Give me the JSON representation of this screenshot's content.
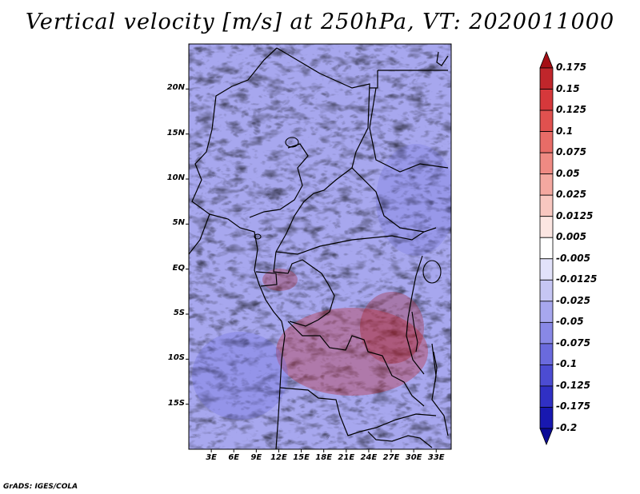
{
  "title": "Vertical velocity [m/s] at 250hPa, VT: 2020011000",
  "credit": "GrADS: IGES/COLA",
  "map": {
    "lat_range": [
      -20,
      25
    ],
    "lon_range": [
      0,
      35
    ],
    "y_ticks": [
      {
        "lat": 20,
        "label": "20N"
      },
      {
        "lat": 15,
        "label": "15N"
      },
      {
        "lat": 10,
        "label": "10N"
      },
      {
        "lat": 5,
        "label": "5N"
      },
      {
        "lat": 0,
        "label": "EQ"
      },
      {
        "lat": -5,
        "label": "5S"
      },
      {
        "lat": -10,
        "label": "10S"
      },
      {
        "lat": -15,
        "label": "15S"
      }
    ],
    "x_ticks": [
      {
        "lon": 3,
        "label": "3E"
      },
      {
        "lon": 6,
        "label": "6E"
      },
      {
        "lon": 9,
        "label": "9E"
      },
      {
        "lon": 12,
        "label": "12E"
      },
      {
        "lon": 15,
        "label": "15E"
      },
      {
        "lon": 18,
        "label": "18E"
      },
      {
        "lon": 21,
        "label": "21E"
      },
      {
        "lon": 24,
        "label": "24E"
      },
      {
        "lon": 27,
        "label": "27E"
      },
      {
        "lon": 30,
        "label": "30E"
      },
      {
        "lon": 33,
        "label": "33E"
      }
    ]
  },
  "colorbar": {
    "labels": [
      "0.175",
      "0.15",
      "0.125",
      "0.1",
      "0.075",
      "0.05",
      "0.025",
      "0.0125",
      "0.005",
      "-0.005",
      "-0.0125",
      "-0.025",
      "-0.05",
      "-0.075",
      "-0.1",
      "-0.125",
      "-0.175",
      "-0.2"
    ],
    "colors": [
      "#a50f15",
      "#c0262b",
      "#d6383b",
      "#e0514f",
      "#e86c67",
      "#ef8a83",
      "#f4a8a0",
      "#f8c7c0",
      "#fce6e2",
      "#ffffff",
      "#e2e2fa",
      "#c6c6f4",
      "#a7a7ee",
      "#8888e6",
      "#6a6add",
      "#4c4cd2",
      "#3030c4",
      "#1818b0",
      "#0a0a96"
    ]
  }
}
